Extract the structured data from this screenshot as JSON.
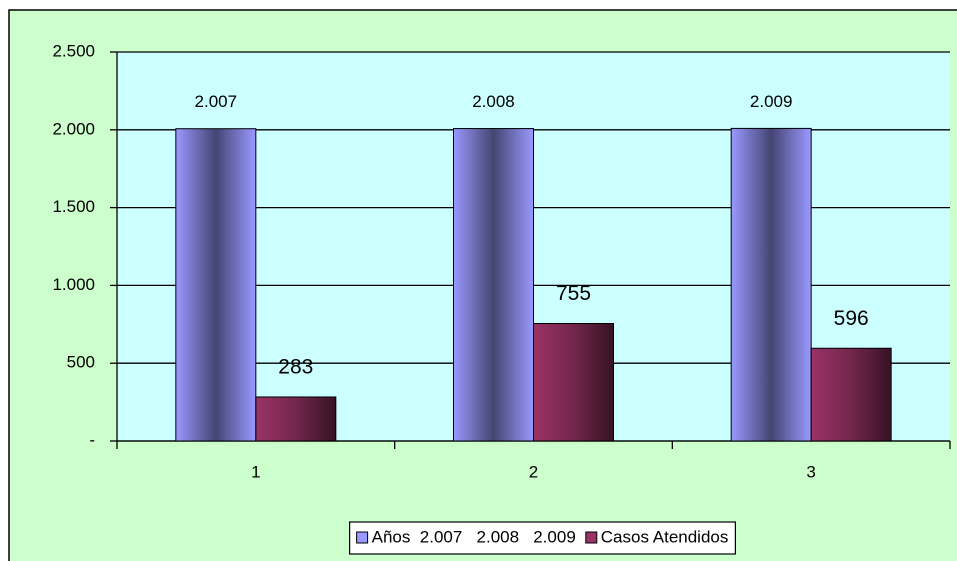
{
  "chart_data": {
    "type": "bar",
    "categories": [
      "1",
      "2",
      "3"
    ],
    "series": [
      {
        "name": "Años  2.007   2.008   2.009",
        "color": "#9999ff",
        "values": [
          2007,
          2008,
          2009
        ],
        "value_labels": [
          "2.007",
          "2.008",
          "2.009"
        ]
      },
      {
        "name": "Casos Atendidos",
        "color": "#993366",
        "values": [
          283,
          755,
          596
        ]
      }
    ],
    "ylim": [
      0,
      2500
    ],
    "yticks": [
      {
        "value": 0,
        "label": "-"
      },
      500,
      {
        "value": 1000,
        "label": "1.000"
      },
      {
        "value": 1500,
        "label": "1.500"
      },
      {
        "value": 2000,
        "label": "2.000"
      },
      {
        "value": 2500,
        "label": "2.500"
      }
    ],
    "grid": true,
    "legend": "bottom"
  }
}
